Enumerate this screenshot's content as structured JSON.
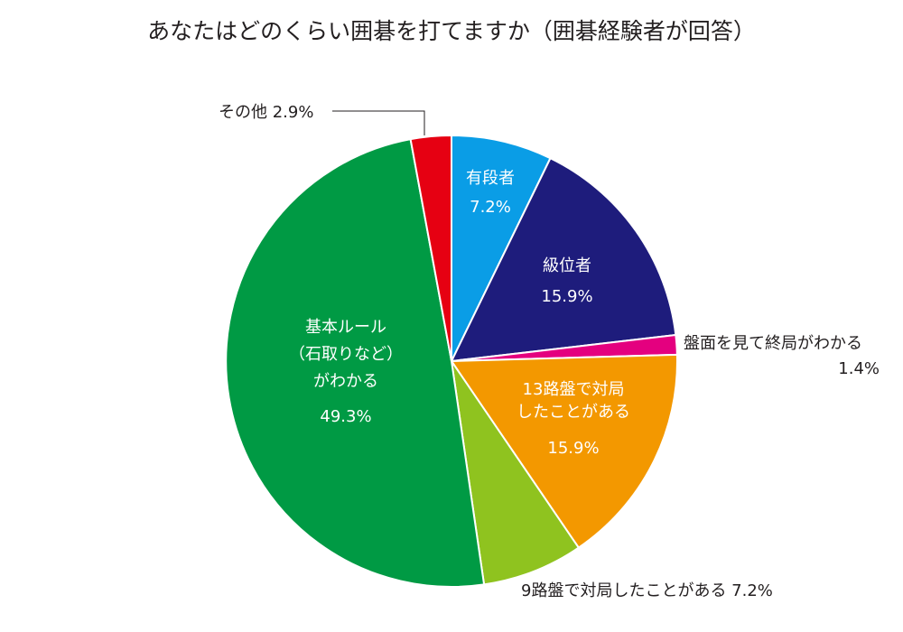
{
  "chart_data": {
    "type": "pie",
    "title": "あなたはどのくらい囲碁を打てますか（囲碁経験者が回答）",
    "start": "12 o'clock",
    "direction": "clockwise",
    "slices": [
      {
        "key": "yudansha",
        "label": [
          "有段者"
        ],
        "value": 7.2,
        "value_text": "7.2%",
        "color": "#0a9de6",
        "label_position": "inside"
      },
      {
        "key": "kyuisha",
        "label": [
          "級位者"
        ],
        "value": 15.9,
        "value_text": "15.9%",
        "color": "#1e1c7c",
        "label_position": "inside"
      },
      {
        "key": "ban-wakaru",
        "label": [
          "盤面を見て終局がわかる"
        ],
        "value": 1.4,
        "value_text": "1.4%",
        "color": "#e4007f",
        "label_position": "outside"
      },
      {
        "key": "13ro",
        "label": [
          "13路盤で対局",
          "したことがある"
        ],
        "value": 15.9,
        "value_text": "15.9%",
        "color": "#f39800",
        "label_position": "inside"
      },
      {
        "key": "9ro",
        "label": [
          "9路盤で対局したことがある"
        ],
        "value": 7.2,
        "value_text": "7.2%",
        "color": "#8fc31f",
        "label_position": "outside"
      },
      {
        "key": "kihon",
        "label": [
          "基本ルール",
          "（石取りなど）",
          "がわかる"
        ],
        "value": 49.3,
        "value_text": "49.3%",
        "color": "#009a44",
        "label_position": "inside"
      },
      {
        "key": "sonota",
        "label": [
          "その他"
        ],
        "value": 2.9,
        "value_text": "2.9%",
        "color": "#e60012",
        "label_position": "outside-leader"
      }
    ]
  }
}
